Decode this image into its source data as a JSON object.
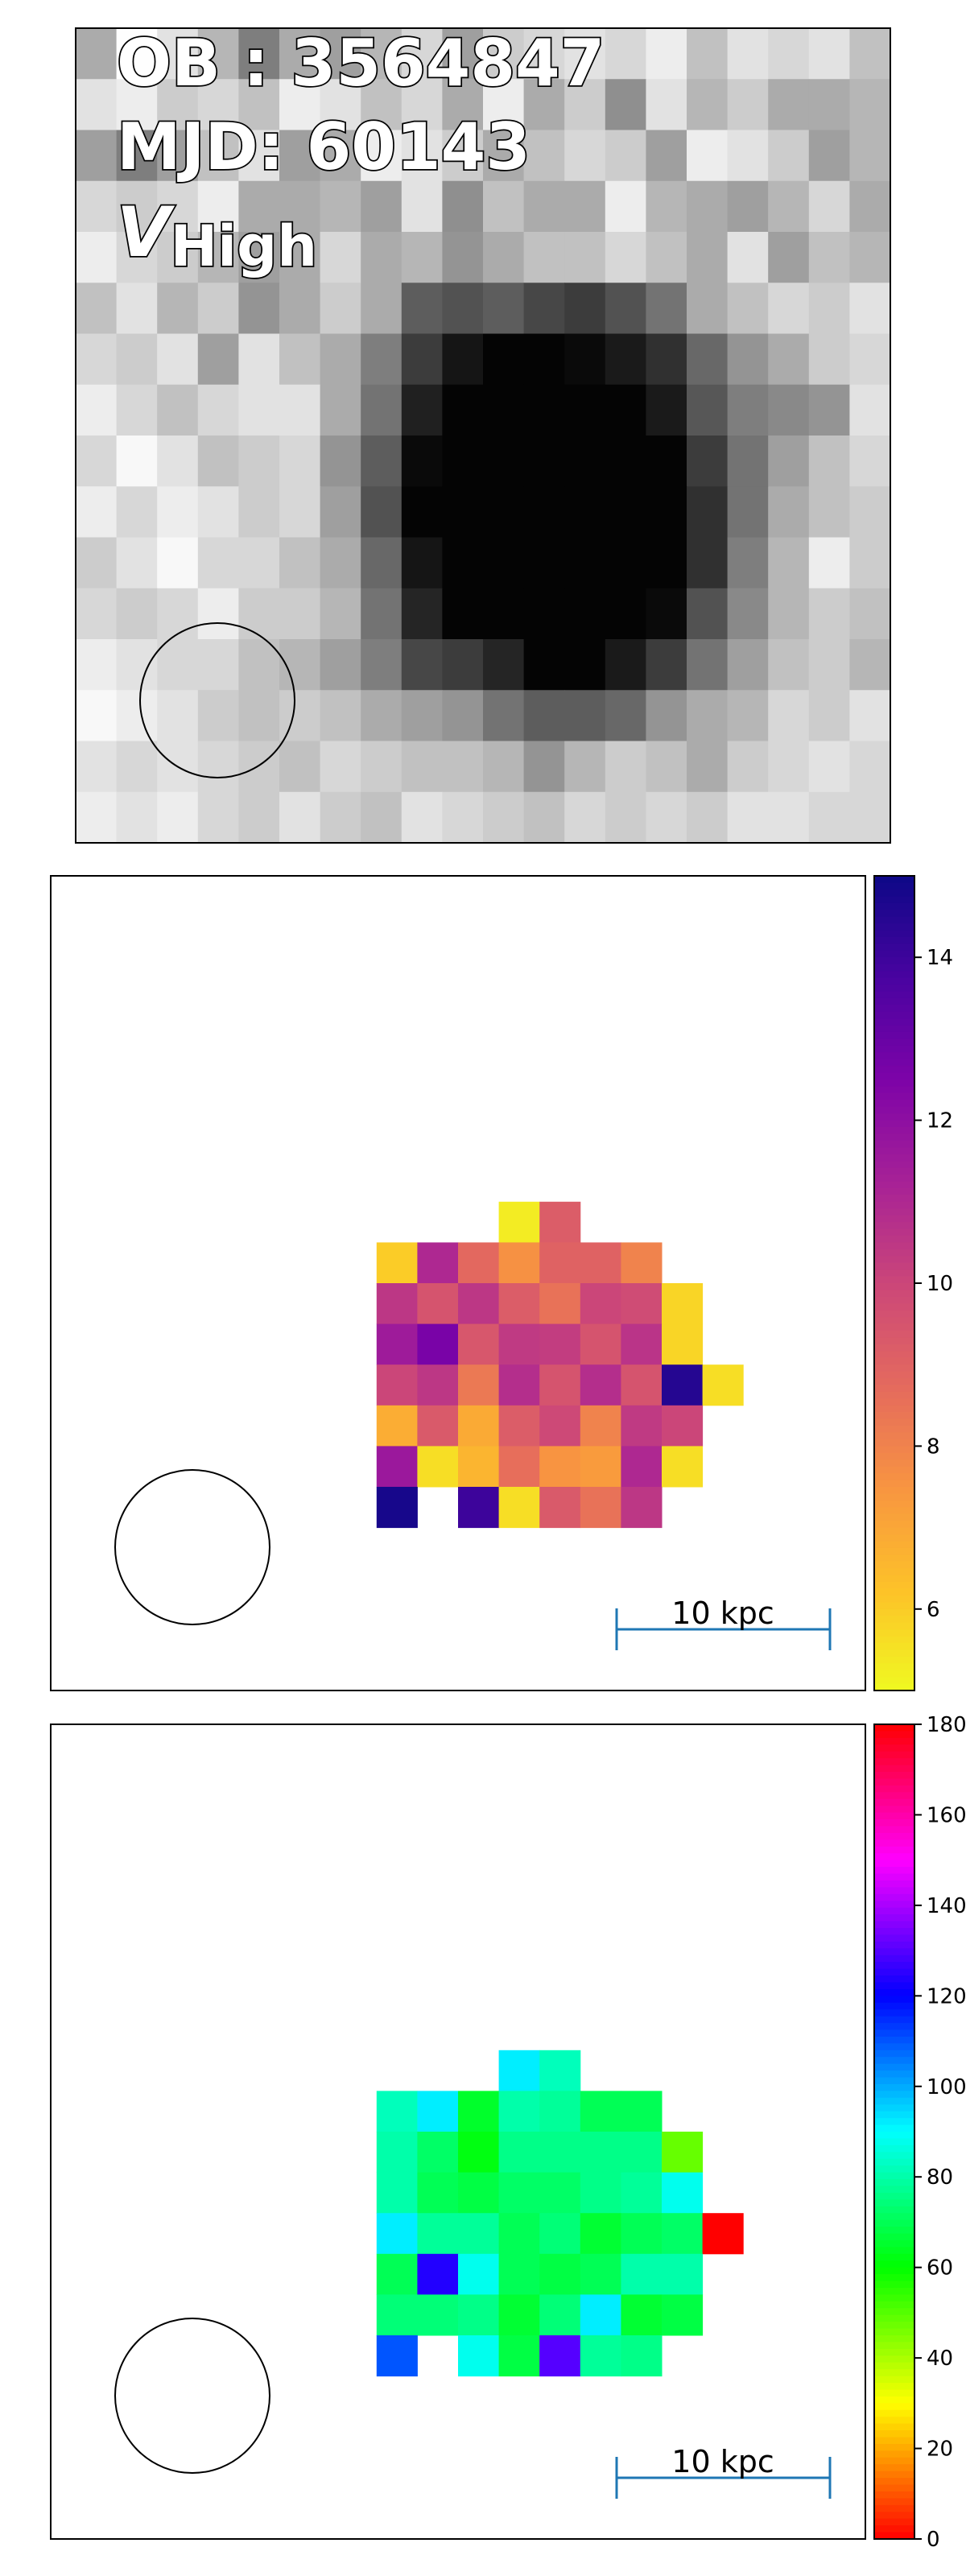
{
  "chart_data": [
    {
      "type": "heatmap",
      "panel": "image",
      "colormap": "gray_r",
      "annotations": {
        "ob_text": "OB : 3564847",
        "mjd_text": "MJD: 60143",
        "band_symbol": "V",
        "band_subscript": "High"
      },
      "cells": [
        [
          70,
          55,
          60,
          68,
          78,
          70,
          72,
          68,
          62,
          72,
          64,
          62,
          60,
          62,
          58,
          66,
          60,
          62,
          60,
          66
        ],
        [
          60,
          58,
          64,
          62,
          66,
          58,
          60,
          66,
          62,
          70,
          58,
          70,
          64,
          75,
          60,
          68,
          64,
          70,
          70,
          68
        ],
        [
          72,
          78,
          72,
          66,
          60,
          72,
          70,
          58,
          60,
          64,
          70,
          66,
          62,
          64,
          72,
          58,
          60,
          64,
          72,
          68
        ],
        [
          62,
          64,
          62,
          58,
          70,
          70,
          68,
          72,
          60,
          75,
          66,
          70,
          70,
          58,
          68,
          70,
          72,
          68,
          62,
          70
        ],
        [
          58,
          62,
          64,
          68,
          72,
          70,
          62,
          70,
          68,
          74,
          70,
          66,
          66,
          62,
          66,
          70,
          60,
          72,
          66,
          68
        ],
        [
          66,
          60,
          68,
          64,
          74,
          70,
          64,
          70,
          84,
          86,
          84,
          88,
          90,
          86,
          80,
          70,
          66,
          62,
          64,
          60
        ],
        [
          62,
          64,
          60,
          72,
          60,
          66,
          70,
          78,
          90,
          97,
          100,
          100,
          99,
          96,
          92,
          82,
          74,
          70,
          64,
          62
        ],
        [
          58,
          62,
          66,
          62,
          60,
          60,
          70,
          80,
          95,
          100,
          100,
          100,
          100,
          100,
          96,
          85,
          78,
          76,
          74,
          60
        ],
        [
          62,
          56,
          60,
          66,
          64,
          62,
          74,
          84,
          99,
          100,
          100,
          100,
          100,
          100,
          100,
          90,
          80,
          72,
          66,
          62
        ],
        [
          58,
          62,
          58,
          60,
          64,
          62,
          72,
          86,
          100,
          100,
          100,
          100,
          100,
          100,
          100,
          92,
          80,
          70,
          66,
          64
        ],
        [
          64,
          60,
          56,
          62,
          62,
          66,
          70,
          82,
          97,
          100,
          100,
          100,
          100,
          100,
          100,
          92,
          78,
          68,
          58,
          64
        ],
        [
          62,
          64,
          62,
          58,
          64,
          64,
          68,
          80,
          94,
          100,
          100,
          100,
          100,
          100,
          99,
          86,
          76,
          68,
          64,
          66
        ],
        [
          58,
          60,
          62,
          62,
          66,
          68,
          72,
          78,
          88,
          90,
          94,
          100,
          100,
          96,
          90,
          80,
          72,
          66,
          64,
          68
        ],
        [
          56,
          58,
          60,
          64,
          66,
          64,
          66,
          70,
          72,
          74,
          80,
          84,
          84,
          82,
          74,
          70,
          68,
          62,
          64,
          60
        ],
        [
          60,
          62,
          60,
          62,
          64,
          66,
          62,
          64,
          66,
          66,
          68,
          74,
          68,
          64,
          66,
          70,
          64,
          62,
          60,
          62
        ],
        [
          58,
          60,
          58,
          62,
          64,
          60,
          64,
          66,
          60,
          62,
          64,
          66,
          62,
          64,
          62,
          64,
          60,
          60,
          62,
          62
        ]
      ],
      "value_range": [
        55,
        100
      ]
    },
    {
      "type": "heatmap",
      "panel": "map",
      "colormap": "plasma_r",
      "colorbar": {
        "min": 5,
        "max": 15,
        "ticks": [
          6,
          8,
          10,
          12,
          14
        ]
      },
      "scalebar_label": "10 kpc",
      "grid_cols": 20,
      "grid_rows": 20,
      "data_origin": {
        "col": 8,
        "row": 8
      },
      "cells": [
        [
          null,
          null,
          null,
          5.3,
          9.2,
          null,
          null,
          null,
          null
        ],
        [
          6.0,
          11.0,
          8.8,
          7.6,
          9.0,
          9.0,
          8.0,
          null,
          null
        ],
        [
          10.5,
          9.5,
          10.5,
          9.2,
          8.5,
          10.0,
          9.8,
          5.8,
          null
        ],
        [
          11.5,
          12.6,
          9.4,
          10.4,
          10.3,
          9.5,
          10.6,
          5.8,
          null
        ],
        [
          10.0,
          10.5,
          8.3,
          10.8,
          9.5,
          10.8,
          9.5,
          14.5,
          5.6
        ],
        [
          6.8,
          9.3,
          6.9,
          9.2,
          9.9,
          8.0,
          10.4,
          10.0,
          null
        ],
        [
          11.6,
          5.6,
          6.6,
          8.6,
          7.5,
          7.3,
          11.0,
          5.6,
          null
        ],
        [
          14.8,
          null,
          14.0,
          5.6,
          9.3,
          8.5,
          10.5,
          null,
          null
        ]
      ]
    },
    {
      "type": "heatmap",
      "panel": "map",
      "colormap": "hsv",
      "colorbar": {
        "min": 0,
        "max": 180,
        "ticks": [
          0,
          20,
          40,
          60,
          80,
          100,
          120,
          140,
          160,
          180
        ]
      },
      "scalebar_label": "10 kpc",
      "grid_cols": 20,
      "grid_rows": 20,
      "data_origin": {
        "col": 8,
        "row": 8
      },
      "cells": [
        [
          null,
          null,
          null,
          92,
          82,
          null,
          null,
          null,
          null
        ],
        [
          82,
          92,
          65,
          80,
          78,
          70,
          70,
          null,
          null
        ],
        [
          80,
          72,
          62,
          76,
          76,
          76,
          76,
          48,
          null
        ],
        [
          80,
          70,
          68,
          72,
          72,
          76,
          78,
          88,
          null
        ],
        [
          92,
          78,
          78,
          70,
          74,
          66,
          70,
          72,
          0
        ],
        [
          70,
          124,
          88,
          70,
          68,
          70,
          80,
          80,
          null
        ],
        [
          74,
          74,
          76,
          66,
          74,
          92,
          66,
          68,
          null
        ],
        [
          110,
          null,
          88,
          68,
          130,
          78,
          76,
          null,
          null
        ]
      ]
    }
  ]
}
